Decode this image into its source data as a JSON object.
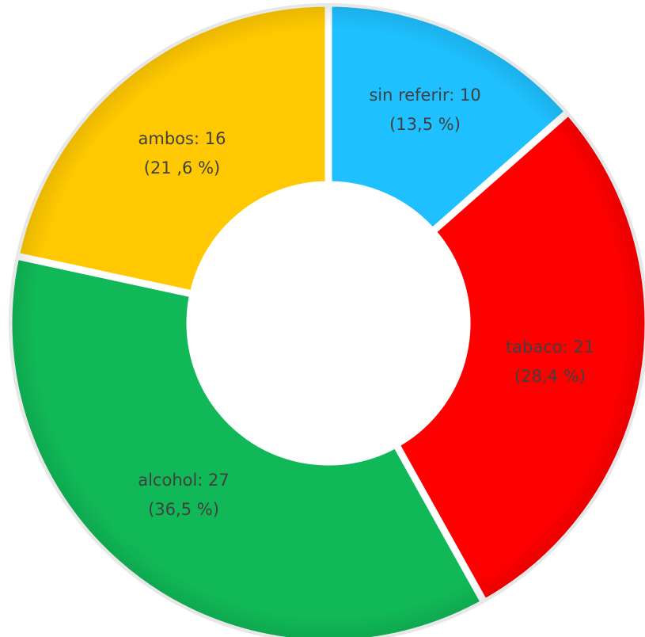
{
  "chart_data": {
    "type": "pie",
    "variant": "donut",
    "categories": [
      "sin referir",
      "tabaco",
      "alcohol",
      "ambos"
    ],
    "values": [
      10,
      21,
      27,
      16
    ],
    "percent_labels": [
      "(13,5 %)",
      "(28,4 %)",
      "(36,5 %)",
      "(21 ,6 %)"
    ],
    "value_labels": [
      "sin referir: 10",
      "tabaco:  21",
      "alcohol: 27",
      "ambos: 16"
    ],
    "colors": [
      "#1ec0ff",
      "#ff0000",
      "#10b857",
      "#ffc800"
    ],
    "start": "12 o'clock",
    "direction": "clockwise",
    "legend": "none",
    "title": ""
  }
}
